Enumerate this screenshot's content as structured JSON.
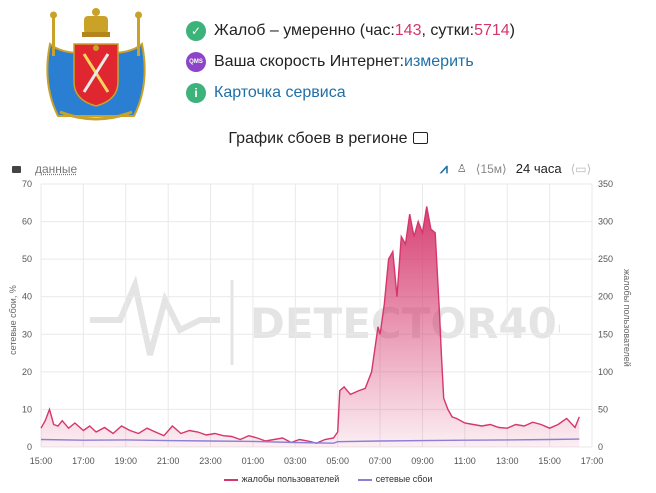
{
  "colors": {
    "complaints": "#d5366c",
    "network": "#8c7fd6",
    "grid": "#e9e9e9",
    "accent_red": "#d5366c",
    "link": "#1f6fa8",
    "check_green": "#3cb37a"
  },
  "status": {
    "complaints_prefix": "Жалоб – умеренно (час: ",
    "hour_value": "143",
    "sep": ", сутки: ",
    "day_value": "5714",
    "suffix": ")",
    "speed_label": "Ваша скорость Интернет: ",
    "speed_link": "измерить",
    "qms_badge": "QMS",
    "service_card": "Карточка сервиса"
  },
  "toolbar": {
    "data_label": "данные",
    "range_15m": "⟨15м⟩",
    "range_24h": "24 часа"
  },
  "chart_data": {
    "type": "area",
    "title": "График сбоев в регионе",
    "ylabel_left": "сетевые сбои, %",
    "ylabel_right": "жалобы пользователей",
    "ylim_left": [
      0,
      70
    ],
    "ylim_right": [
      0,
      350
    ],
    "left_ticks": [
      "0",
      "10",
      "20",
      "30",
      "40",
      "50",
      "60",
      "70"
    ],
    "right_ticks": [
      "0",
      "50",
      "100",
      "150",
      "200",
      "250",
      "300",
      "350"
    ],
    "x_ticks": [
      "15:00",
      "17:00",
      "19:00",
      "21:00",
      "23:00",
      "01:00",
      "03:00",
      "05:00",
      "07:00",
      "09:00",
      "11:00",
      "13:00",
      "15:00",
      "17:00"
    ],
    "x_start_hour": 15,
    "x_end_hour": 41,
    "grid": true,
    "legend_position": "bottom",
    "series": [
      {
        "name": "жалобы пользователей",
        "axis": "right",
        "x": [
          15.0,
          15.2,
          15.4,
          15.6,
          15.8,
          16.0,
          16.3,
          16.6,
          17.0,
          17.3,
          17.6,
          18.0,
          18.4,
          18.8,
          19.2,
          19.6,
          20.0,
          20.4,
          20.8,
          21.2,
          21.6,
          22.0,
          22.4,
          22.8,
          23.2,
          23.6,
          24.0,
          24.4,
          24.8,
          25.2,
          25.6,
          26.0,
          26.4,
          26.8,
          27.2,
          27.6,
          28.0,
          28.4,
          28.8,
          29.0,
          29.1,
          29.3,
          29.6,
          30.0,
          30.3,
          30.6,
          30.9,
          31.0,
          31.2,
          31.4,
          31.6,
          31.8,
          32.0,
          32.2,
          32.4,
          32.6,
          32.8,
          33.0,
          33.2,
          33.4,
          33.6,
          33.8,
          33.9,
          34.0,
          34.2,
          34.4,
          34.6,
          35.0,
          35.4,
          35.8,
          36.2,
          36.6,
          37.0,
          37.4,
          37.8,
          38.2,
          38.6,
          39.0,
          39.4,
          39.8,
          40.2,
          40.4
        ],
        "values": [
          25,
          35,
          50,
          30,
          28,
          35,
          25,
          32,
          22,
          28,
          20,
          26,
          18,
          28,
          22,
          18,
          25,
          20,
          15,
          28,
          18,
          22,
          20,
          16,
          18,
          15,
          14,
          10,
          15,
          12,
          8,
          10,
          12,
          6,
          10,
          8,
          5,
          10,
          12,
          20,
          75,
          80,
          70,
          75,
          78,
          100,
          160,
          150,
          190,
          250,
          260,
          200,
          280,
          270,
          310,
          280,
          300,
          285,
          320,
          290,
          285,
          180,
          120,
          65,
          50,
          40,
          38,
          32,
          30,
          28,
          30,
          26,
          25,
          30,
          28,
          33,
          30,
          25,
          30,
          38,
          26,
          40
        ]
      },
      {
        "name": "сетевые сбои",
        "axis": "left",
        "x": [
          15.0,
          17.0,
          19.0,
          21.0,
          23.0,
          25.0,
          27.0,
          28.8,
          29.0,
          31.0,
          33.0,
          35.0,
          37.0,
          39.0,
          40.4
        ],
        "values": [
          2.0,
          1.8,
          1.9,
          1.7,
          1.6,
          1.5,
          1.2,
          1.0,
          1.4,
          1.6,
          1.7,
          1.8,
          1.9,
          2.0,
          2.1
        ]
      }
    ]
  }
}
